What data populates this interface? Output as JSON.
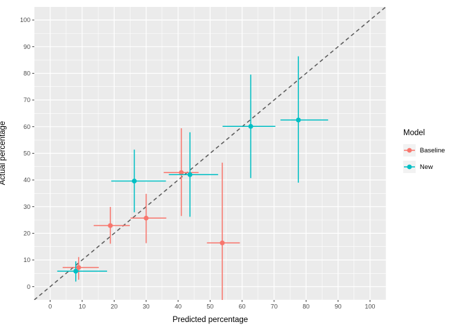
{
  "chart_data": {
    "type": "scatter",
    "title": "",
    "xlabel": "Predicted percentage",
    "ylabel": "Actual percentage",
    "xlim": [
      -5,
      105
    ],
    "ylim": [
      -5,
      105
    ],
    "x_ticks": [
      0,
      10,
      20,
      30,
      40,
      50,
      60,
      70,
      80,
      90,
      100
    ],
    "y_ticks": [
      0,
      10,
      20,
      30,
      40,
      50,
      60,
      70,
      80,
      90,
      100
    ],
    "minor_tick_step": 5,
    "grid": "on",
    "panel_background": "#EBEBEB",
    "grid_color": "#FFFFFF",
    "tick_label_color": "#4D4D4D",
    "reference_line": {
      "equation": "y = x",
      "style": "dashed",
      "color": "#595959"
    },
    "legend": {
      "title": "Model",
      "position": "right",
      "key_fill": "#F2F2F2",
      "entries": [
        {
          "label": "Baseline",
          "color": "#F8766D"
        },
        {
          "label": "New",
          "color": "#00BFC4"
        }
      ]
    },
    "series": [
      {
        "name": "Baseline",
        "color": "#F8766D",
        "points": [
          {
            "x": 8.9,
            "y": 7.2,
            "x_err": [
              3.9,
              15.2
            ],
            "y_err": [
              2.6,
              11.1
            ]
          },
          {
            "x": 18.8,
            "y": 22.9,
            "x_err": [
              13.6,
              24.9
            ],
            "y_err": [
              16.1,
              29.9
            ]
          },
          {
            "x": 30.0,
            "y": 25.7,
            "x_err": [
              25.1,
              36.3
            ],
            "y_err": [
              16.3,
              34.8
            ]
          },
          {
            "x": 41.0,
            "y": 42.8,
            "x_err": [
              35.5,
              46.4
            ],
            "y_err": [
              26.5,
              59.4
            ]
          },
          {
            "x": 53.8,
            "y": 16.4,
            "x_err": [
              49.0,
              59.3
            ],
            "y_err": [
              -5.0,
              46.5
            ]
          }
        ]
      },
      {
        "name": "New",
        "color": "#00BFC4",
        "points": [
          {
            "x": 8.0,
            "y": 5.8,
            "x_err": [
              2.2,
              17.8
            ],
            "y_err": [
              1.9,
              9.5
            ]
          },
          {
            "x": 26.3,
            "y": 39.6,
            "x_err": [
              19.1,
              36.2
            ],
            "y_err": [
              27.9,
              51.4
            ]
          },
          {
            "x": 43.7,
            "y": 42.0,
            "x_err": [
              37.1,
              52.5
            ],
            "y_err": [
              26.2,
              57.9
            ]
          },
          {
            "x": 62.7,
            "y": 60.1,
            "x_err": [
              53.9,
              70.4
            ],
            "y_err": [
              40.7,
              79.5
            ]
          },
          {
            "x": 77.6,
            "y": 62.5,
            "x_err": [
              72.0,
              86.9
            ],
            "y_err": [
              39.0,
              86.4
            ]
          }
        ]
      }
    ]
  }
}
